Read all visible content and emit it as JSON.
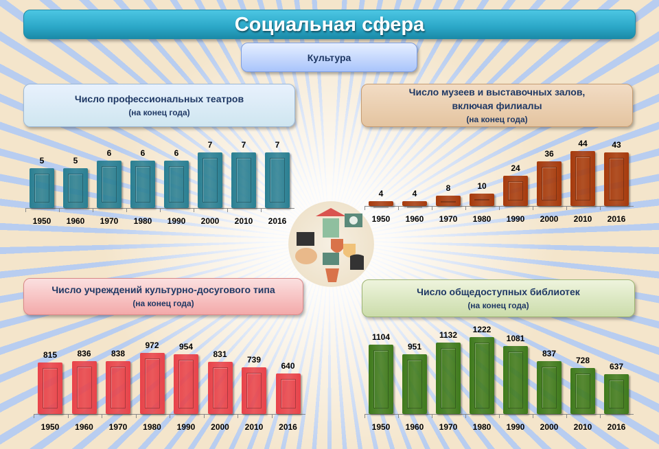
{
  "title": "Социальная сфера",
  "subtitle": "Культура",
  "colors": {
    "teal": "#2a7f92",
    "brown": "#a63a0c",
    "red": "#e8434a",
    "green": "#3f7a1c"
  },
  "chart_data": [
    {
      "type": "bar",
      "title": "Число профессиональных театров",
      "subtitle": "(на конец года)",
      "categories": [
        "1950",
        "1960",
        "1970",
        "1980",
        "1990",
        "2000",
        "2010",
        "2016"
      ],
      "values": [
        5,
        5,
        6,
        6,
        6,
        7,
        7,
        7
      ],
      "color": "teal"
    },
    {
      "type": "bar",
      "title": "Число музеев и выставочных залов,",
      "title2": "включая филиалы",
      "subtitle": "(на конец года)",
      "categories": [
        "1950",
        "1960",
        "1970",
        "1980",
        "1990",
        "2000",
        "2010",
        "2016"
      ],
      "values": [
        4,
        4,
        8,
        10,
        24,
        36,
        44,
        43
      ],
      "color": "brown"
    },
    {
      "type": "bar",
      "title": "Число учреждений культурно-досугового типа",
      "subtitle": "(на конец года)",
      "categories": [
        "1950",
        "1960",
        "1970",
        "1980",
        "1990",
        "2000",
        "2010",
        "2016"
      ],
      "values": [
        815,
        836,
        838,
        972,
        954,
        831,
        739,
        640
      ],
      "color": "red"
    },
    {
      "type": "bar",
      "title": "Число общедоступных библиотек",
      "subtitle": "(на конец года)",
      "categories": [
        "1950",
        "1960",
        "1970",
        "1980",
        "1990",
        "2000",
        "2010",
        "2016"
      ],
      "values": [
        1104,
        951,
        1132,
        1222,
        1081,
        837,
        728,
        637
      ],
      "color": "green"
    }
  ]
}
